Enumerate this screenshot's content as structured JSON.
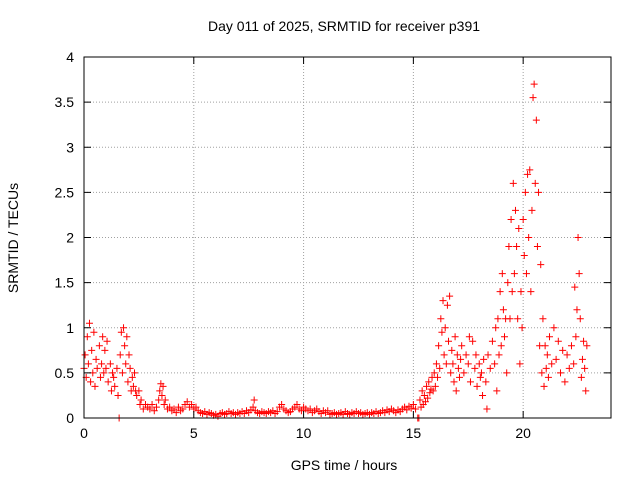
{
  "chart_data": {
    "type": "scatter",
    "title": "Day 011 of 2025, SRMTID for receiver p391",
    "xlabel": "GPS time / hours",
    "ylabel": "SRMTID / TECUs",
    "xlim": [
      0,
      24
    ],
    "ylim": [
      0,
      4
    ],
    "xticks": [
      0,
      5,
      10,
      15,
      20
    ],
    "yticks": [
      0,
      0.5,
      1,
      1.5,
      2,
      2.5,
      3,
      3.5,
      4
    ],
    "xtick_labels": [
      "0",
      "5",
      "10",
      "15",
      "20"
    ],
    "ytick_labels": [
      "0",
      "0.5",
      "1",
      "1.5",
      "2",
      "2.5",
      "3",
      "3.5",
      "4"
    ],
    "grid": true,
    "marker": "+",
    "color": "#ff0000",
    "series": [
      {
        "name": "SRMTID",
        "points": [
          [
            0.0,
            0.55
          ],
          [
            0.05,
            0.7
          ],
          [
            0.1,
            0.45
          ],
          [
            0.15,
            0.9
          ],
          [
            0.2,
            0.6
          ],
          [
            0.25,
            1.05
          ],
          [
            0.3,
            0.4
          ],
          [
            0.35,
            0.75
          ],
          [
            0.4,
            0.5
          ],
          [
            0.45,
            0.95
          ],
          [
            0.5,
            0.35
          ],
          [
            0.55,
            0.65
          ],
          [
            0.6,
            0.55
          ],
          [
            0.7,
            0.8
          ],
          [
            0.75,
            0.45
          ],
          [
            0.8,
            0.6
          ],
          [
            0.85,
            0.9
          ],
          [
            0.9,
            0.5
          ],
          [
            0.95,
            0.75
          ],
          [
            1.0,
            0.55
          ],
          [
            1.05,
            0.85
          ],
          [
            1.1,
            0.4
          ],
          [
            1.2,
            0.6
          ],
          [
            1.25,
            0.3
          ],
          [
            1.3,
            0.5
          ],
          [
            1.35,
            0.45
          ],
          [
            1.4,
            0.35
          ],
          [
            1.5,
            0.55
          ],
          [
            1.55,
            0.25
          ],
          [
            1.6,
            0.0
          ],
          [
            1.65,
            0.7
          ],
          [
            1.7,
            0.95
          ],
          [
            1.75,
            0.5
          ],
          [
            1.8,
            1.0
          ],
          [
            1.85,
            0.8
          ],
          [
            1.9,
            0.6
          ],
          [
            1.95,
            0.9
          ],
          [
            2.0,
            0.4
          ],
          [
            2.05,
            0.7
          ],
          [
            2.1,
            0.55
          ],
          [
            2.15,
            0.3
          ],
          [
            2.2,
            0.45
          ],
          [
            2.25,
            0.35
          ],
          [
            2.3,
            0.5
          ],
          [
            2.35,
            0.3
          ],
          [
            2.4,
            0.25
          ],
          [
            2.5,
            0.3
          ],
          [
            2.55,
            0.15
          ],
          [
            2.6,
            0.2
          ],
          [
            2.7,
            0.1
          ],
          [
            2.8,
            0.15
          ],
          [
            2.9,
            0.12
          ],
          [
            3.0,
            0.1
          ],
          [
            3.1,
            0.15
          ],
          [
            3.2,
            0.08
          ],
          [
            3.3,
            0.12
          ],
          [
            3.4,
            0.2
          ],
          [
            3.45,
            0.3
          ],
          [
            3.5,
            0.38
          ],
          [
            3.55,
            0.25
          ],
          [
            3.6,
            0.35
          ],
          [
            3.65,
            0.15
          ],
          [
            3.7,
            0.2
          ],
          [
            3.8,
            0.1
          ],
          [
            3.9,
            0.12
          ],
          [
            4.0,
            0.08
          ],
          [
            4.1,
            0.1
          ],
          [
            4.2,
            0.06
          ],
          [
            4.3,
            0.12
          ],
          [
            4.4,
            0.08
          ],
          [
            4.5,
            0.1
          ],
          [
            4.6,
            0.15
          ],
          [
            4.7,
            0.18
          ],
          [
            4.8,
            0.12
          ],
          [
            4.9,
            0.15
          ],
          [
            5.0,
            0.1
          ],
          [
            5.1,
            0.12
          ],
          [
            5.2,
            0.08
          ],
          [
            5.3,
            0.06
          ],
          [
            5.4,
            0.05
          ],
          [
            5.5,
            0.07
          ],
          [
            5.6,
            0.04
          ],
          [
            5.7,
            0.06
          ],
          [
            5.8,
            0.05
          ],
          [
            5.9,
            0.03
          ],
          [
            6.0,
            0.04
          ],
          [
            6.1,
            0.02
          ],
          [
            6.2,
            0.05
          ],
          [
            6.3,
            0.06
          ],
          [
            6.4,
            0.04
          ],
          [
            6.5,
            0.05
          ],
          [
            6.6,
            0.07
          ],
          [
            6.7,
            0.05
          ],
          [
            6.8,
            0.06
          ],
          [
            6.9,
            0.04
          ],
          [
            7.0,
            0.06
          ],
          [
            7.1,
            0.05
          ],
          [
            7.2,
            0.07
          ],
          [
            7.3,
            0.05
          ],
          [
            7.4,
            0.08
          ],
          [
            7.5,
            0.06
          ],
          [
            7.6,
            0.09
          ],
          [
            7.7,
            0.12
          ],
          [
            7.75,
            0.2
          ],
          [
            7.8,
            0.08
          ],
          [
            7.9,
            0.06
          ],
          [
            8.0,
            0.05
          ],
          [
            8.1,
            0.07
          ],
          [
            8.2,
            0.06
          ],
          [
            8.3,
            0.05
          ],
          [
            8.4,
            0.07
          ],
          [
            8.5,
            0.06
          ],
          [
            8.6,
            0.08
          ],
          [
            8.7,
            0.05
          ],
          [
            8.8,
            0.07
          ],
          [
            8.9,
            0.12
          ],
          [
            9.0,
            0.15
          ],
          [
            9.1,
            0.1
          ],
          [
            9.2,
            0.08
          ],
          [
            9.3,
            0.06
          ],
          [
            9.4,
            0.07
          ],
          [
            9.5,
            0.1
          ],
          [
            9.6,
            0.12
          ],
          [
            9.7,
            0.15
          ],
          [
            9.8,
            0.1
          ],
          [
            9.9,
            0.08
          ],
          [
            10.0,
            0.12
          ],
          [
            10.1,
            0.1
          ],
          [
            10.2,
            0.08
          ],
          [
            10.3,
            0.1
          ],
          [
            10.4,
            0.06
          ],
          [
            10.5,
            0.08
          ],
          [
            10.6,
            0.1
          ],
          [
            10.7,
            0.07
          ],
          [
            10.8,
            0.05
          ],
          [
            10.9,
            0.08
          ],
          [
            11.0,
            0.06
          ],
          [
            11.1,
            0.08
          ],
          [
            11.2,
            0.04
          ],
          [
            11.3,
            0.05
          ],
          [
            11.4,
            0.06
          ],
          [
            11.5,
            0.04
          ],
          [
            11.6,
            0.05
          ],
          [
            11.7,
            0.06
          ],
          [
            11.8,
            0.04
          ],
          [
            11.9,
            0.07
          ],
          [
            12.0,
            0.05
          ],
          [
            12.1,
            0.04
          ],
          [
            12.2,
            0.06
          ],
          [
            12.3,
            0.05
          ],
          [
            12.4,
            0.07
          ],
          [
            12.5,
            0.05
          ],
          [
            12.6,
            0.06
          ],
          [
            12.7,
            0.04
          ],
          [
            12.8,
            0.05
          ],
          [
            12.9,
            0.06
          ],
          [
            13.0,
            0.04
          ],
          [
            13.1,
            0.06
          ],
          [
            13.2,
            0.05
          ],
          [
            13.3,
            0.07
          ],
          [
            13.4,
            0.05
          ],
          [
            13.5,
            0.06
          ],
          [
            13.6,
            0.08
          ],
          [
            13.7,
            0.06
          ],
          [
            13.8,
            0.09
          ],
          [
            13.9,
            0.07
          ],
          [
            14.0,
            0.1
          ],
          [
            14.1,
            0.08
          ],
          [
            14.2,
            0.06
          ],
          [
            14.3,
            0.09
          ],
          [
            14.4,
            0.07
          ],
          [
            14.5,
            0.1
          ],
          [
            14.6,
            0.12
          ],
          [
            14.7,
            0.09
          ],
          [
            14.8,
            0.13
          ],
          [
            14.9,
            0.11
          ],
          [
            15.0,
            0.15
          ],
          [
            15.1,
            0.1
          ],
          [
            15.2,
            0.0
          ],
          [
            15.25,
            0.0
          ],
          [
            15.3,
            0.2
          ],
          [
            15.35,
            0.12
          ],
          [
            15.4,
            0.3
          ],
          [
            15.45,
            0.15
          ],
          [
            15.5,
            0.25
          ],
          [
            15.55,
            0.18
          ],
          [
            15.6,
            0.35
          ],
          [
            15.65,
            0.22
          ],
          [
            15.7,
            0.4
          ],
          [
            15.75,
            0.28
          ],
          [
            15.8,
            0.32
          ],
          [
            15.85,
            0.45
          ],
          [
            15.9,
            0.3
          ],
          [
            15.95,
            0.5
          ],
          [
            16.0,
            0.35
          ],
          [
            16.05,
            0.6
          ],
          [
            16.1,
            0.45
          ],
          [
            16.15,
            0.8
          ],
          [
            16.2,
            0.55
          ],
          [
            16.25,
            1.1
          ],
          [
            16.3,
            0.95
          ],
          [
            16.35,
            1.3
          ],
          [
            16.4,
            0.7
          ],
          [
            16.45,
            1.0
          ],
          [
            16.5,
            0.6
          ],
          [
            16.55,
            1.25
          ],
          [
            16.6,
            0.85
          ],
          [
            16.65,
            1.35
          ],
          [
            16.7,
            0.5
          ],
          [
            16.75,
            0.75
          ],
          [
            16.8,
            0.6
          ],
          [
            16.85,
            0.4
          ],
          [
            16.9,
            0.9
          ],
          [
            16.95,
            0.3
          ],
          [
            17.0,
            0.7
          ],
          [
            17.05,
            0.55
          ],
          [
            17.1,
            0.45
          ],
          [
            17.15,
            0.65
          ],
          [
            17.2,
            0.8
          ],
          [
            17.3,
            0.5
          ],
          [
            17.4,
            0.7
          ],
          [
            17.5,
            0.6
          ],
          [
            17.55,
            0.9
          ],
          [
            17.6,
            0.4
          ],
          [
            17.7,
            0.85
          ],
          [
            17.8,
            0.55
          ],
          [
            17.85,
            0.7
          ],
          [
            17.9,
            0.35
          ],
          [
            18.0,
            0.6
          ],
          [
            18.05,
            0.45
          ],
          [
            18.1,
            0.5
          ],
          [
            18.15,
            0.25
          ],
          [
            18.2,
            0.65
          ],
          [
            18.3,
            0.4
          ],
          [
            18.35,
            0.1
          ],
          [
            18.4,
            0.7
          ],
          [
            18.5,
            0.55
          ],
          [
            18.6,
            0.85
          ],
          [
            18.7,
            0.6
          ],
          [
            18.75,
            1.0
          ],
          [
            18.8,
            0.3
          ],
          [
            18.85,
            1.1
          ],
          [
            18.9,
            0.7
          ],
          [
            18.95,
            1.4
          ],
          [
            19.0,
            0.8
          ],
          [
            19.05,
            1.6
          ],
          [
            19.1,
            1.2
          ],
          [
            19.15,
            0.9
          ],
          [
            19.2,
            1.1
          ],
          [
            19.25,
            0.5
          ],
          [
            19.3,
            1.5
          ],
          [
            19.35,
            1.9
          ],
          [
            19.4,
            1.1
          ],
          [
            19.45,
            2.2
          ],
          [
            19.5,
            1.4
          ],
          [
            19.55,
            2.6
          ],
          [
            19.6,
            1.6
          ],
          [
            19.65,
            2.3
          ],
          [
            19.7,
            1.9
          ],
          [
            19.75,
            1.1
          ],
          [
            19.8,
            2.1
          ],
          [
            19.85,
            0.6
          ],
          [
            19.9,
            1.4
          ],
          [
            19.95,
            1.0
          ],
          [
            20.0,
            2.2
          ],
          [
            20.05,
            1.8
          ],
          [
            20.1,
            2.5
          ],
          [
            20.15,
            1.6
          ],
          [
            20.2,
            2.7
          ],
          [
            20.25,
            2.0
          ],
          [
            20.3,
            2.75
          ],
          [
            20.35,
            1.4
          ],
          [
            20.4,
            2.3
          ],
          [
            20.45,
            3.55
          ],
          [
            20.5,
            3.7
          ],
          [
            20.55,
            2.6
          ],
          [
            20.6,
            3.3
          ],
          [
            20.65,
            1.9
          ],
          [
            20.7,
            2.5
          ],
          [
            20.75,
            0.8
          ],
          [
            20.8,
            1.7
          ],
          [
            20.85,
            0.5
          ],
          [
            20.9,
            1.1
          ],
          [
            20.95,
            0.35
          ],
          [
            21.0,
            0.8
          ],
          [
            21.05,
            0.55
          ],
          [
            21.1,
            0.7
          ],
          [
            21.15,
            0.45
          ],
          [
            21.2,
            0.9
          ],
          [
            21.3,
            0.6
          ],
          [
            21.4,
            1.0
          ],
          [
            21.5,
            0.65
          ],
          [
            21.6,
            0.85
          ],
          [
            21.7,
            0.5
          ],
          [
            21.8,
            0.75
          ],
          [
            21.9,
            0.4
          ],
          [
            22.0,
            0.7
          ],
          [
            22.1,
            0.55
          ],
          [
            22.2,
            0.8
          ],
          [
            22.3,
            0.6
          ],
          [
            22.35,
            1.45
          ],
          [
            22.4,
            0.9
          ],
          [
            22.45,
            1.2
          ],
          [
            22.5,
            2.0
          ],
          [
            22.55,
            1.6
          ],
          [
            22.6,
            1.1
          ],
          [
            22.65,
            0.45
          ],
          [
            22.7,
            0.65
          ],
          [
            22.75,
            0.85
          ],
          [
            22.8,
            0.55
          ],
          [
            22.85,
            0.3
          ],
          [
            22.9,
            0.8
          ]
        ]
      }
    ]
  }
}
